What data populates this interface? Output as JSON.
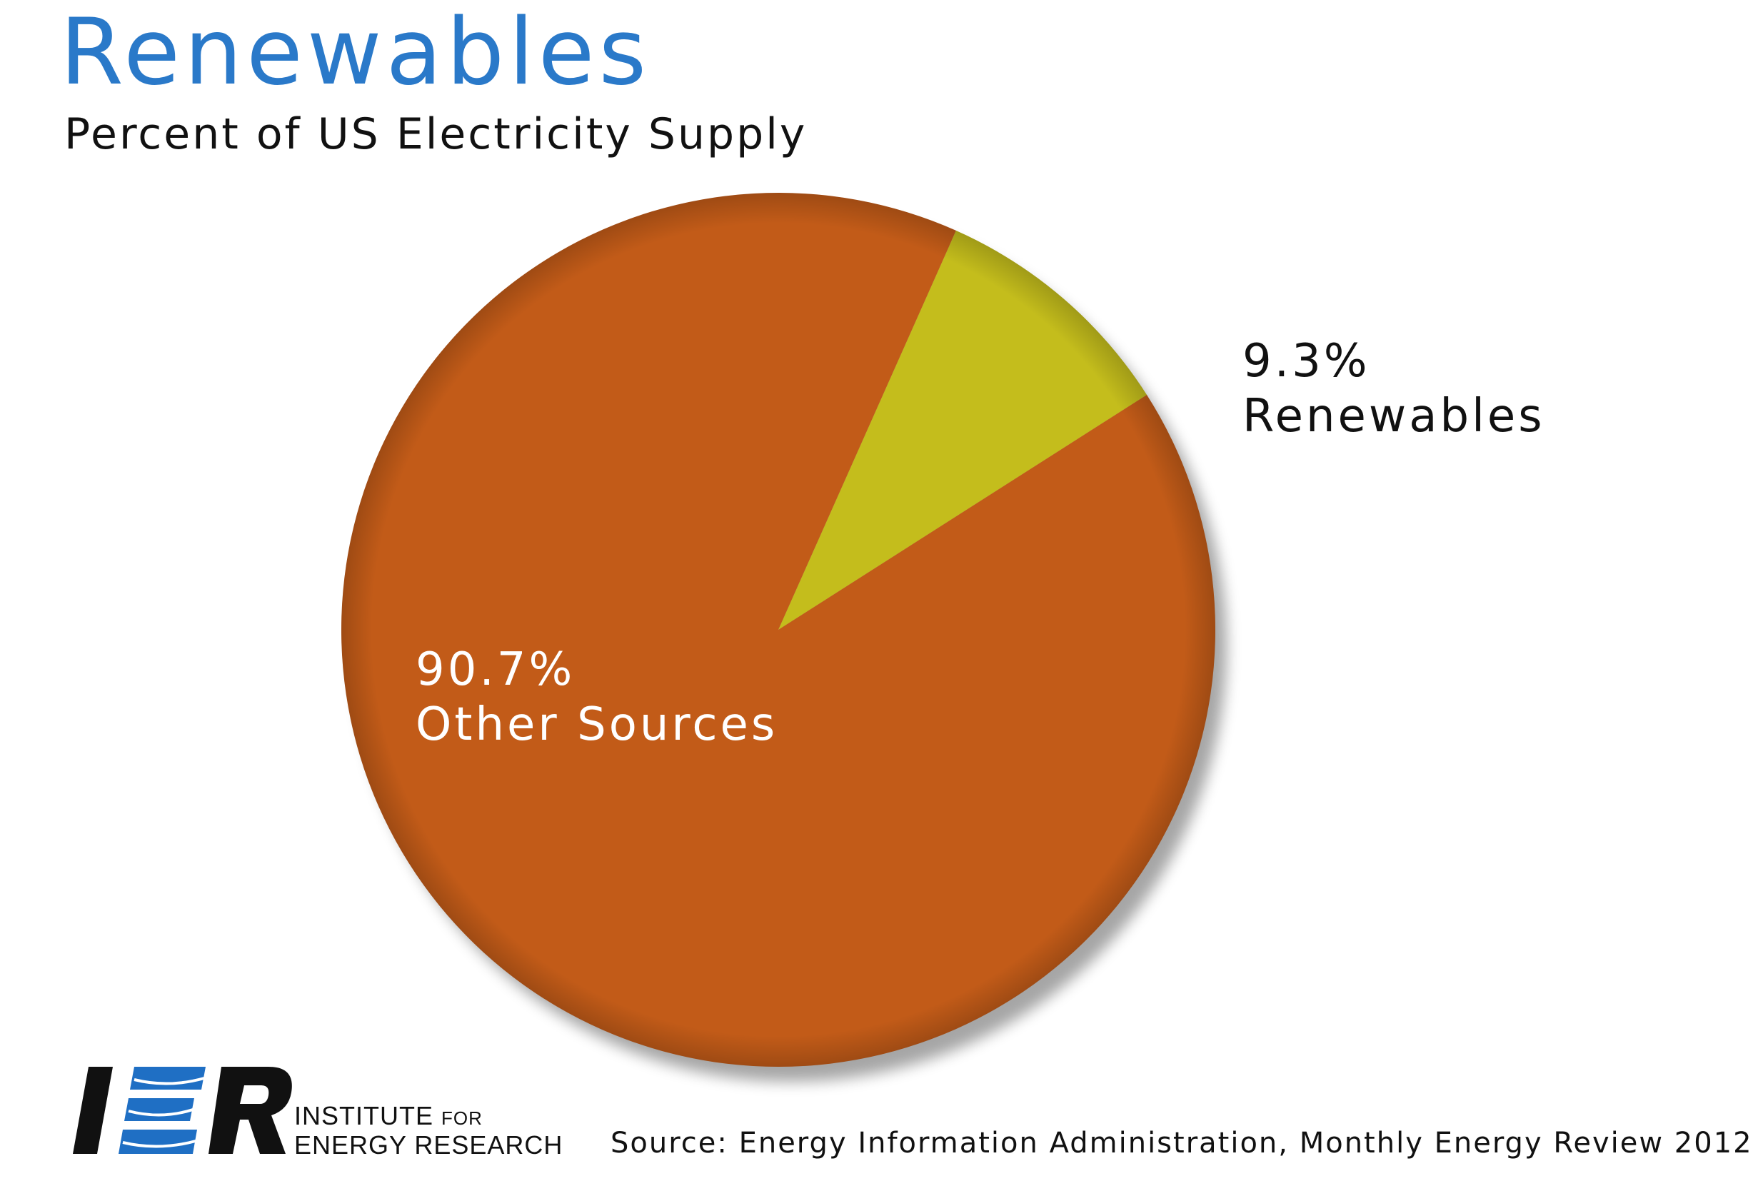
{
  "chart_data": {
    "type": "pie",
    "title": "Renewables",
    "subtitle": "Percent of US Electricity Supply",
    "slices": [
      {
        "label": "Renewables",
        "value": 9.3,
        "value_label": "9.3%",
        "color": "#c4bd1c"
      },
      {
        "label": "Other Sources",
        "value": 90.7,
        "value_label": "90.7%",
        "color": "#c25b18"
      }
    ],
    "source": "Source: Energy Information Administration, Monthly Energy Review 2012"
  },
  "logo": {
    "letters": "IER",
    "line1": "INSTITUTE",
    "line1_small": "FOR",
    "line2": "ENERGY RESEARCH"
  },
  "colors": {
    "title": "#2a79c9",
    "accent_blue": "#1f6fc4"
  }
}
